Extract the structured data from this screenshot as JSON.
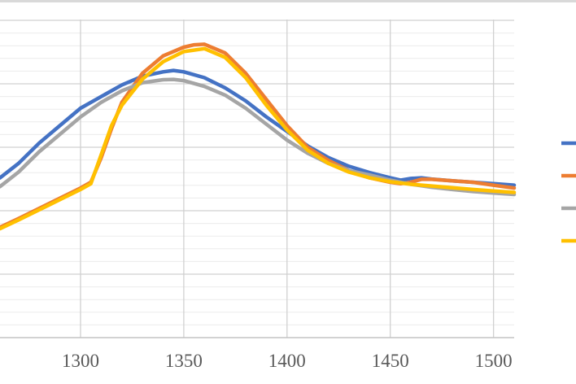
{
  "chart_data": {
    "type": "line",
    "title": "",
    "xlabel": "",
    "ylabel": "",
    "xlim": [
      1261,
      1510
    ],
    "ylim": [
      0,
      1
    ],
    "x_ticks": [
      1300,
      1350,
      1400,
      1450,
      1500
    ],
    "x_tick_labels": [
      "1300",
      "1350",
      "1400",
      "1450",
      "1500"
    ],
    "grid": {
      "major": true,
      "minor": true
    },
    "legend": {
      "position": "right",
      "entries_visible": "line swatches only"
    },
    "series": [
      {
        "color": "#4472C4",
        "points": [
          [
            1261,
            0.55
          ],
          [
            1270,
            0.6
          ],
          [
            1280,
            0.67
          ],
          [
            1290,
            0.73
          ],
          [
            1300,
            0.79
          ],
          [
            1310,
            0.83
          ],
          [
            1320,
            0.87
          ],
          [
            1330,
            0.9
          ],
          [
            1340,
            0.915
          ],
          [
            1345,
            0.92
          ],
          [
            1350,
            0.915
          ],
          [
            1360,
            0.895
          ],
          [
            1370,
            0.86
          ],
          [
            1380,
            0.815
          ],
          [
            1390,
            0.76
          ],
          [
            1400,
            0.71
          ],
          [
            1410,
            0.66
          ],
          [
            1420,
            0.62
          ],
          [
            1430,
            0.59
          ],
          [
            1440,
            0.568
          ],
          [
            1450,
            0.55
          ],
          [
            1455,
            0.542
          ],
          [
            1460,
            0.548
          ],
          [
            1465,
            0.55
          ],
          [
            1470,
            0.546
          ],
          [
            1480,
            0.54
          ],
          [
            1490,
            0.535
          ],
          [
            1500,
            0.53
          ],
          [
            1510,
            0.525
          ]
        ]
      },
      {
        "color": "#ED7D31",
        "points": [
          [
            1261,
            0.38
          ],
          [
            1270,
            0.41
          ],
          [
            1280,
            0.445
          ],
          [
            1290,
            0.48
          ],
          [
            1300,
            0.515
          ],
          [
            1305,
            0.535
          ],
          [
            1310,
            0.62
          ],
          [
            1315,
            0.72
          ],
          [
            1320,
            0.81
          ],
          [
            1330,
            0.91
          ],
          [
            1340,
            0.97
          ],
          [
            1350,
            1.0
          ],
          [
            1355,
            1.008
          ],
          [
            1360,
            1.01
          ],
          [
            1370,
            0.98
          ],
          [
            1380,
            0.91
          ],
          [
            1390,
            0.82
          ],
          [
            1400,
            0.73
          ],
          [
            1410,
            0.655
          ],
          [
            1420,
            0.61
          ],
          [
            1430,
            0.575
          ],
          [
            1440,
            0.55
          ],
          [
            1450,
            0.535
          ],
          [
            1455,
            0.53
          ],
          [
            1460,
            0.535
          ],
          [
            1465,
            0.545
          ],
          [
            1470,
            0.545
          ],
          [
            1480,
            0.54
          ],
          [
            1490,
            0.535
          ],
          [
            1500,
            0.525
          ],
          [
            1510,
            0.515
          ]
        ]
      },
      {
        "color": "#A5A5A5",
        "points": [
          [
            1261,
            0.52
          ],
          [
            1270,
            0.57
          ],
          [
            1280,
            0.64
          ],
          [
            1290,
            0.7
          ],
          [
            1300,
            0.76
          ],
          [
            1310,
            0.81
          ],
          [
            1320,
            0.85
          ],
          [
            1330,
            0.878
          ],
          [
            1340,
            0.888
          ],
          [
            1345,
            0.889
          ],
          [
            1350,
            0.885
          ],
          [
            1360,
            0.865
          ],
          [
            1370,
            0.835
          ],
          [
            1380,
            0.79
          ],
          [
            1390,
            0.735
          ],
          [
            1400,
            0.68
          ],
          [
            1410,
            0.635
          ],
          [
            1420,
            0.6
          ],
          [
            1430,
            0.575
          ],
          [
            1440,
            0.56
          ],
          [
            1450,
            0.542
          ],
          [
            1460,
            0.528
          ],
          [
            1470,
            0.518
          ],
          [
            1480,
            0.51
          ],
          [
            1490,
            0.503
          ],
          [
            1500,
            0.498
          ],
          [
            1510,
            0.493
          ]
        ]
      },
      {
        "color": "#FFC000",
        "points": [
          [
            1261,
            0.375
          ],
          [
            1270,
            0.405
          ],
          [
            1280,
            0.44
          ],
          [
            1290,
            0.475
          ],
          [
            1300,
            0.51
          ],
          [
            1305,
            0.53
          ],
          [
            1310,
            0.63
          ],
          [
            1315,
            0.73
          ],
          [
            1320,
            0.8
          ],
          [
            1330,
            0.89
          ],
          [
            1340,
            0.95
          ],
          [
            1350,
            0.985
          ],
          [
            1360,
            0.995
          ],
          [
            1370,
            0.965
          ],
          [
            1380,
            0.895
          ],
          [
            1390,
            0.8
          ],
          [
            1400,
            0.715
          ],
          [
            1410,
            0.645
          ],
          [
            1420,
            0.6
          ],
          [
            1430,
            0.57
          ],
          [
            1440,
            0.55
          ],
          [
            1450,
            0.537
          ],
          [
            1460,
            0.528
          ],
          [
            1470,
            0.522
          ],
          [
            1480,
            0.516
          ],
          [
            1490,
            0.51
          ],
          [
            1500,
            0.505
          ],
          [
            1510,
            0.5
          ]
        ]
      }
    ]
  }
}
